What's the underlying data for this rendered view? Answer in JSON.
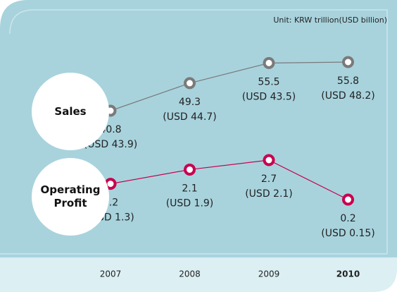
{
  "chart_data": {
    "type": "line",
    "subtitle": "Unit: KRW trillion(USD billion)",
    "categories": [
      "2007",
      "2008",
      "2009",
      "2010"
    ],
    "series": [
      {
        "name": "Sales",
        "color": "#7a7a7a",
        "values": [
          40.8,
          49.3,
          55.5,
          55.8
        ],
        "usd_labels": [
          "(USD 43.9)",
          "(USD 44.7)",
          "(USD 43.5)",
          "(USD 48.2)"
        ]
      },
      {
        "name": "Operating Profit",
        "color": "#c8004e",
        "values": [
          1.2,
          2.1,
          2.7,
          0.2
        ],
        "usd_labels": [
          "(USD 1.3)",
          "(USD 1.9)",
          "(USD 2.1)",
          "(USD 0.15)"
        ]
      }
    ]
  }
}
